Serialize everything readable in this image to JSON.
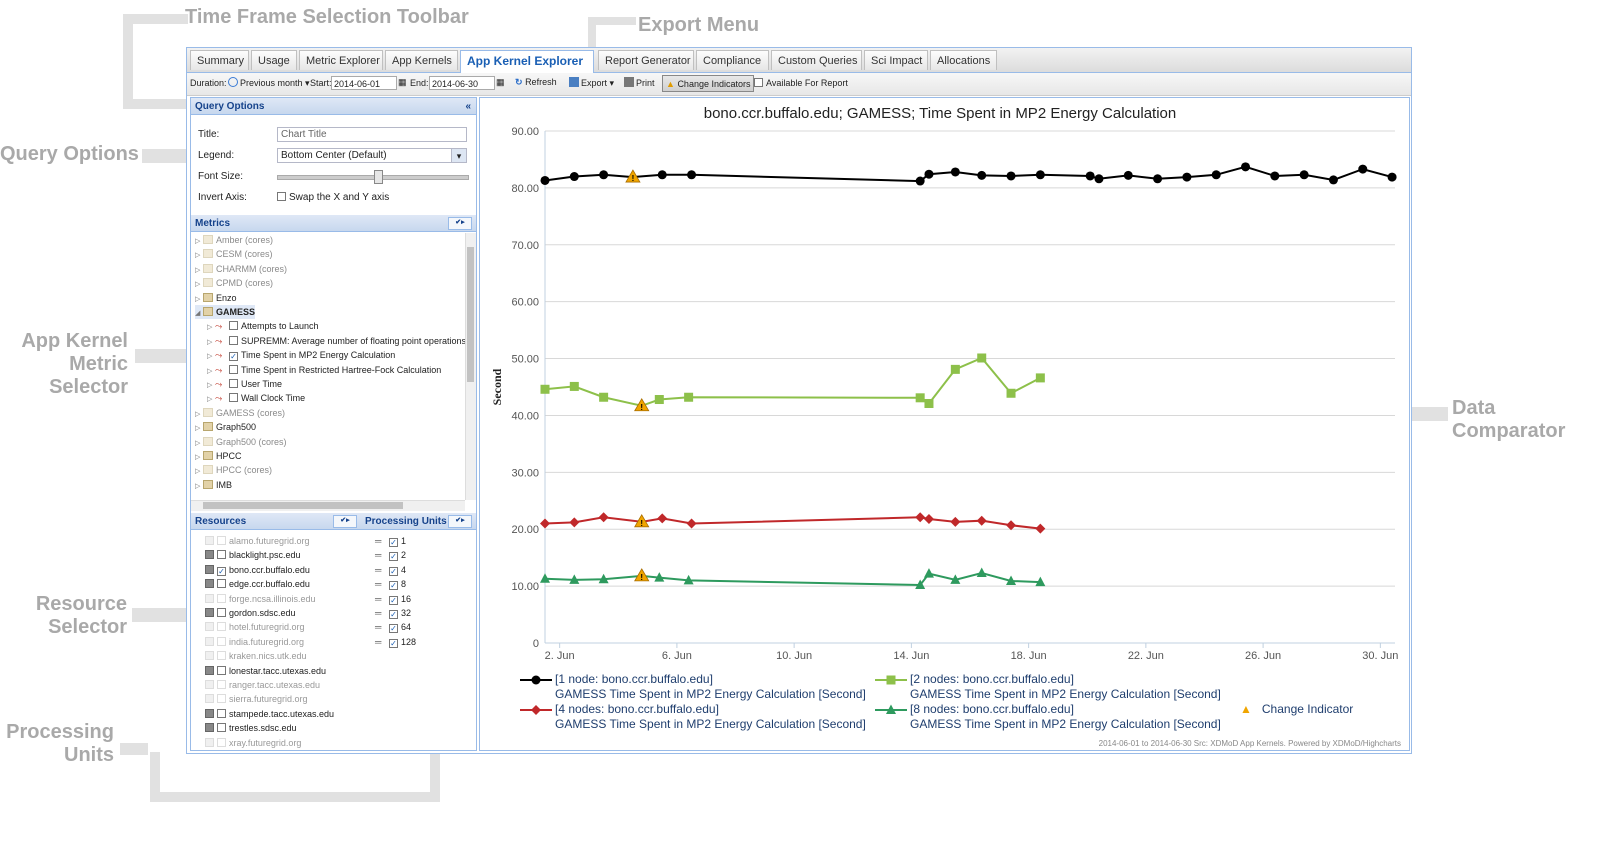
{
  "callouts": {
    "time_frame": "Time Frame Selection Toolbar",
    "export_menu": "Export Menu",
    "query_options": "Query Options",
    "app_kernel_metric": "App Kernel\nMetric Selector",
    "data_comparator": "Data\nComparator",
    "resource_selector": "Resource\nSelector",
    "processing_units": "Processing\nUnits"
  },
  "tabs": [
    "Summary",
    "Usage",
    "Metric Explorer",
    "App Kernels",
    "App Kernel Explorer",
    "Report Generator",
    "Compliance",
    "Custom Queries",
    "Sci Impact",
    "Allocations"
  ],
  "active_tab": "App Kernel Explorer",
  "toolbar": {
    "duration_label": "Duration:",
    "duration_value": "Previous month",
    "start_label": "Start:",
    "start_value": "2014-06-01",
    "end_label": "End:",
    "end_value": "2014-06-30",
    "refresh": "Refresh",
    "export": "Export",
    "print": "Print",
    "change_indicators": "Change Indicators",
    "available_report": "Available For Report"
  },
  "query_options": {
    "header": "Query Options",
    "title_label": "Title:",
    "title_placeholder": "Chart Title",
    "legend_label": "Legend:",
    "legend_value": "Bottom Center (Default)",
    "font_label": "Font Size:",
    "invert_label": "Invert Axis:",
    "invert_text": "Swap the X and Y axis"
  },
  "metrics": {
    "header": "Metrics",
    "items": [
      {
        "label": "Amber (cores)",
        "dim": true,
        "level": 0
      },
      {
        "label": "CESM (cores)",
        "dim": true,
        "level": 0
      },
      {
        "label": "CHARMM (cores)",
        "dim": true,
        "level": 0
      },
      {
        "label": "CPMD (cores)",
        "dim": true,
        "level": 0
      },
      {
        "label": "Enzo",
        "dim": false,
        "level": 0
      },
      {
        "label": "GAMESS",
        "dim": false,
        "level": 0,
        "open": true
      },
      {
        "label": "Attempts to Launch",
        "dim": false,
        "level": 1,
        "checked": false
      },
      {
        "label": "SUPREMM: Average number of floating point operations per s",
        "dim": false,
        "level": 1,
        "checked": false
      },
      {
        "label": "Time Spent in MP2 Energy Calculation",
        "dim": false,
        "level": 1,
        "checked": true
      },
      {
        "label": "Time Spent in Restricted Hartree-Fock Calculation",
        "dim": false,
        "level": 1,
        "checked": false
      },
      {
        "label": "User Time",
        "dim": false,
        "level": 1,
        "checked": false
      },
      {
        "label": "Wall Clock Time",
        "dim": false,
        "level": 1,
        "checked": false
      },
      {
        "label": "GAMESS (cores)",
        "dim": true,
        "level": 0
      },
      {
        "label": "Graph500",
        "dim": false,
        "level": 0
      },
      {
        "label": "Graph500 (cores)",
        "dim": true,
        "level": 0
      },
      {
        "label": "HPCC",
        "dim": false,
        "level": 0
      },
      {
        "label": "HPCC (cores)",
        "dim": true,
        "level": 0
      },
      {
        "label": "IMB",
        "dim": false,
        "level": 0
      }
    ]
  },
  "resources": {
    "header": "Resources",
    "items": [
      {
        "label": "alamo.futuregrid.org",
        "dim": true,
        "checked": false
      },
      {
        "label": "blacklight.psc.edu",
        "dim": false,
        "checked": false
      },
      {
        "label": "bono.ccr.buffalo.edu",
        "dim": false,
        "checked": true
      },
      {
        "label": "edge.ccr.buffalo.edu",
        "dim": false,
        "checked": false
      },
      {
        "label": "forge.ncsa.illinois.edu",
        "dim": true,
        "checked": false
      },
      {
        "label": "gordon.sdsc.edu",
        "dim": false,
        "checked": false
      },
      {
        "label": "hotel.futuregrid.org",
        "dim": true,
        "checked": false
      },
      {
        "label": "india.futuregrid.org",
        "dim": true,
        "checked": false
      },
      {
        "label": "kraken.nics.utk.edu",
        "dim": true,
        "checked": false
      },
      {
        "label": "lonestar.tacc.utexas.edu",
        "dim": false,
        "checked": false
      },
      {
        "label": "ranger.tacc.utexas.edu",
        "dim": true,
        "checked": false
      },
      {
        "label": "sierra.futuregrid.org",
        "dim": true,
        "checked": false
      },
      {
        "label": "stampede.tacc.utexas.edu",
        "dim": false,
        "checked": false
      },
      {
        "label": "trestles.sdsc.edu",
        "dim": false,
        "checked": false
      },
      {
        "label": "xray.futuregrid.org",
        "dim": true,
        "checked": false
      }
    ]
  },
  "processing_units": {
    "header": "Processing Units",
    "items": [
      "1",
      "2",
      "4",
      "8",
      "16",
      "32",
      "64",
      "128"
    ]
  },
  "colors": {
    "series_black": "#000000",
    "series_green": "#8dc04a",
    "series_red": "#c0282a",
    "series_teal": "#2e9a5e",
    "indicator": "#f0a500"
  },
  "chart_data": {
    "type": "line",
    "title": "bono.ccr.buffalo.edu; GAMESS; Time Spent in MP2 Energy Calculation",
    "ylabel": "Second",
    "ylim": [
      0,
      90
    ],
    "yticks": [
      "0",
      "10.00",
      "20.00",
      "30.00",
      "40.00",
      "50.00",
      "60.00",
      "70.00",
      "80.00",
      "90.00"
    ],
    "xlim": [
      1.5,
      30.5
    ],
    "xticks": [
      {
        "x": 2,
        "label": "2. Jun"
      },
      {
        "x": 6,
        "label": "6. Jun"
      },
      {
        "x": 10,
        "label": "10. Jun"
      },
      {
        "x": 14,
        "label": "14. Jun"
      },
      {
        "x": 18,
        "label": "18. Jun"
      },
      {
        "x": 22,
        "label": "22. Jun"
      },
      {
        "x": 26,
        "label": "26. Jun"
      },
      {
        "x": 30,
        "label": "30. Jun"
      }
    ],
    "series": [
      {
        "name": "[1 node: bono.ccr.buffalo.edu]",
        "subtitle": "GAMESS Time Spent in MP2 Energy Calculation [Second]",
        "color": "#000000",
        "marker": "circle",
        "points": [
          [
            1.5,
            81.3
          ],
          [
            2.5,
            82
          ],
          [
            3.5,
            82.3
          ],
          [
            4.5,
            81.9
          ],
          [
            5.5,
            82.3
          ],
          [
            6.5,
            82.3
          ],
          [
            14.3,
            81.2
          ],
          [
            14.6,
            82.4
          ],
          [
            15.5,
            82.8
          ],
          [
            16.4,
            82.2
          ],
          [
            17.4,
            82.1
          ],
          [
            18.4,
            82.3
          ],
          [
            20.1,
            82.1
          ],
          [
            20.4,
            81.6
          ],
          [
            21.4,
            82.2
          ],
          [
            22.4,
            81.6
          ],
          [
            23.4,
            81.9
          ],
          [
            24.4,
            82.3
          ],
          [
            25.4,
            83.7
          ],
          [
            26.4,
            82.1
          ],
          [
            27.4,
            82.3
          ],
          [
            28.4,
            81.4
          ],
          [
            29.4,
            83.3
          ],
          [
            30.4,
            81.9
          ]
        ],
        "indicators": [
          4.5
        ]
      },
      {
        "name": "[2 nodes: bono.ccr.buffalo.edu]",
        "subtitle": "GAMESS Time Spent in MP2 Energy Calculation [Second]",
        "color": "#8dc04a",
        "marker": "square",
        "points": [
          [
            1.5,
            44.6
          ],
          [
            2.5,
            45.1
          ],
          [
            3.5,
            43.2
          ],
          [
            4.8,
            41.7
          ],
          [
            5.4,
            42.8
          ],
          [
            6.4,
            43.2
          ],
          [
            14.3,
            43.1
          ],
          [
            14.6,
            42.1
          ],
          [
            15.5,
            48.1
          ],
          [
            16.4,
            50.1
          ],
          [
            17.4,
            43.9
          ],
          [
            18.4,
            46.6
          ]
        ],
        "indicators": [
          4.8
        ]
      },
      {
        "name": "[4 nodes: bono.ccr.buffalo.edu]",
        "subtitle": "GAMESS Time Spent in MP2 Energy Calculation [Second]",
        "color": "#c0282a",
        "marker": "diamond",
        "points": [
          [
            1.5,
            21
          ],
          [
            2.5,
            21.2
          ],
          [
            3.5,
            22.1
          ],
          [
            4.8,
            21.3
          ],
          [
            5.5,
            21.9
          ],
          [
            6.5,
            21
          ],
          [
            14.3,
            22.1
          ],
          [
            14.6,
            21.8
          ],
          [
            15.5,
            21.3
          ],
          [
            16.4,
            21.5
          ],
          [
            17.4,
            20.7
          ],
          [
            18.4,
            20.1
          ]
        ],
        "indicators": [
          4.8
        ]
      },
      {
        "name": "[8 nodes: bono.ccr.buffalo.edu]",
        "subtitle": "GAMESS Time Spent in MP2 Energy Calculation [Second]",
        "color": "#2e9a5e",
        "marker": "triangle",
        "points": [
          [
            1.5,
            11.3
          ],
          [
            2.5,
            11.1
          ],
          [
            3.5,
            11.2
          ],
          [
            4.8,
            11.8
          ],
          [
            5.4,
            11.5
          ],
          [
            6.4,
            11
          ],
          [
            14.3,
            10.2
          ],
          [
            14.6,
            12.2
          ],
          [
            15.5,
            11.1
          ],
          [
            16.4,
            12.3
          ],
          [
            17.4,
            10.9
          ],
          [
            18.4,
            10.7
          ]
        ],
        "indicators": [
          4.8
        ]
      }
    ],
    "legend": {
      "placement": "bottom-center",
      "indicator_label": "Change Indicator"
    },
    "credit": "2014-06-01 to 2014-06-30 Src: XDMoD App Kernels. Powered by XDMoD/Highcharts"
  }
}
